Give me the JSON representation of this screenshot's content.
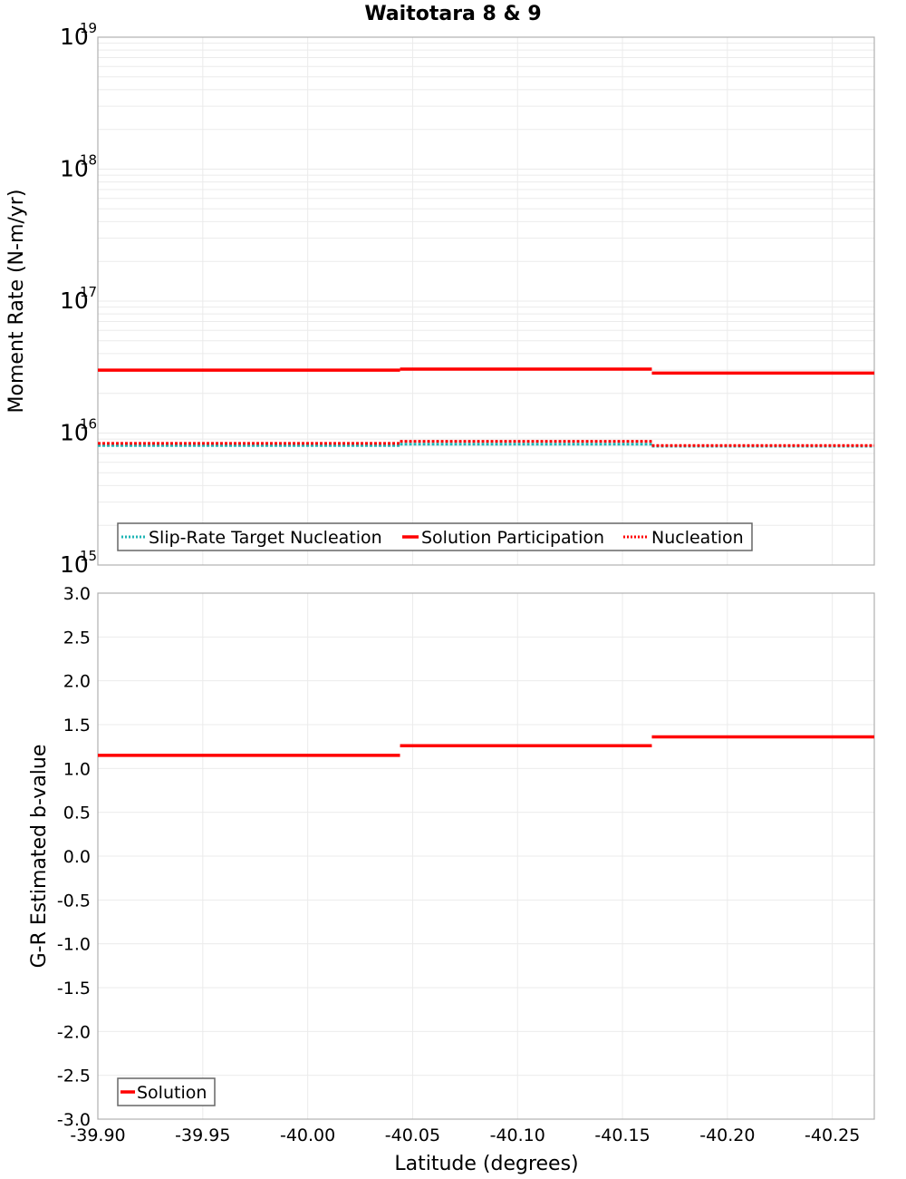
{
  "title": "Waitotara 8 & 9",
  "colors": {
    "solution": "#ff0000",
    "target": "#1fb5b5",
    "grid": "#ebebeb",
    "frame": "#b0b0b0",
    "legend_border": "#666666"
  },
  "chart_data": [
    {
      "type": "line",
      "step": true,
      "title": "Waitotara 8 & 9",
      "xlabel": "Latitude (degrees)",
      "ylabel": "Moment Rate (N-m/yr)",
      "yscale": "log",
      "ylim": [
        1000000000000000.0,
        1e+19
      ],
      "xlim": [
        -39.9,
        -40.27
      ],
      "x_ticks": [
        "-39.90",
        "-39.95",
        "-40.00",
        "-40.05",
        "-40.10",
        "-40.15",
        "-40.20",
        "-40.25"
      ],
      "y_ticks": [
        {
          "base": "10",
          "exp": "15"
        },
        {
          "base": "10",
          "exp": "16"
        },
        {
          "base": "10",
          "exp": "17"
        },
        {
          "base": "10",
          "exp": "18"
        },
        {
          "base": "10",
          "exp": "19"
        }
      ],
      "grid": true,
      "legend_position": "lower-left",
      "x_segments": [
        [
          -39.9,
          -40.044
        ],
        [
          -40.044,
          -40.164
        ],
        [
          -40.164,
          -40.27
        ]
      ],
      "series": [
        {
          "name": "Slip-Rate Target Nucleation",
          "style": "dotted",
          "color": "#1fb5b5",
          "values": [
            8200000000000000.0,
            8400000000000000.0,
            8100000000000000.0
          ]
        },
        {
          "name": "Solution Participation",
          "style": "solid",
          "color": "#ff0000",
          "values": [
            3e+16,
            3.05e+16,
            2.85e+16
          ]
        },
        {
          "name": "Nucleation",
          "style": "dotted",
          "color": "#ff0000",
          "values": [
            8200000000000000.0,
            8500000000000000.0,
            7900000000000000.0
          ]
        }
      ]
    },
    {
      "type": "line",
      "step": true,
      "xlabel": "Latitude (degrees)",
      "ylabel": "G-R Estimated b-value",
      "ylim": [
        -3.0,
        3.0
      ],
      "xlim": [
        -39.9,
        -40.27
      ],
      "x_ticks": [
        "-39.90",
        "-39.95",
        "-40.00",
        "-40.05",
        "-40.10",
        "-40.15",
        "-40.20",
        "-40.25"
      ],
      "y_ticks": [
        "3.0",
        "2.5",
        "2.0",
        "1.5",
        "1.0",
        "0.5",
        "0.0",
        "-0.5",
        "-1.0",
        "-1.5",
        "-2.0",
        "-2.5",
        "-3.0"
      ],
      "grid": true,
      "legend_position": "lower-left",
      "x_segments": [
        [
          -39.9,
          -40.044
        ],
        [
          -40.044,
          -40.164
        ],
        [
          -40.164,
          -40.27
        ]
      ],
      "series": [
        {
          "name": "Solution",
          "style": "solid",
          "color": "#ff0000",
          "values": [
            1.15,
            1.26,
            1.36
          ]
        }
      ]
    }
  ],
  "top_legend": [
    {
      "label": "Slip-Rate Target Nucleation",
      "style": "dotted",
      "color": "#1fb5b5"
    },
    {
      "label": "Solution Participation",
      "style": "solid",
      "color": "#ff0000"
    },
    {
      "label": "Nucleation",
      "style": "dotted",
      "color": "#ff0000"
    }
  ],
  "bottom_legend": [
    {
      "label": "Solution",
      "style": "solid",
      "color": "#ff0000"
    }
  ]
}
